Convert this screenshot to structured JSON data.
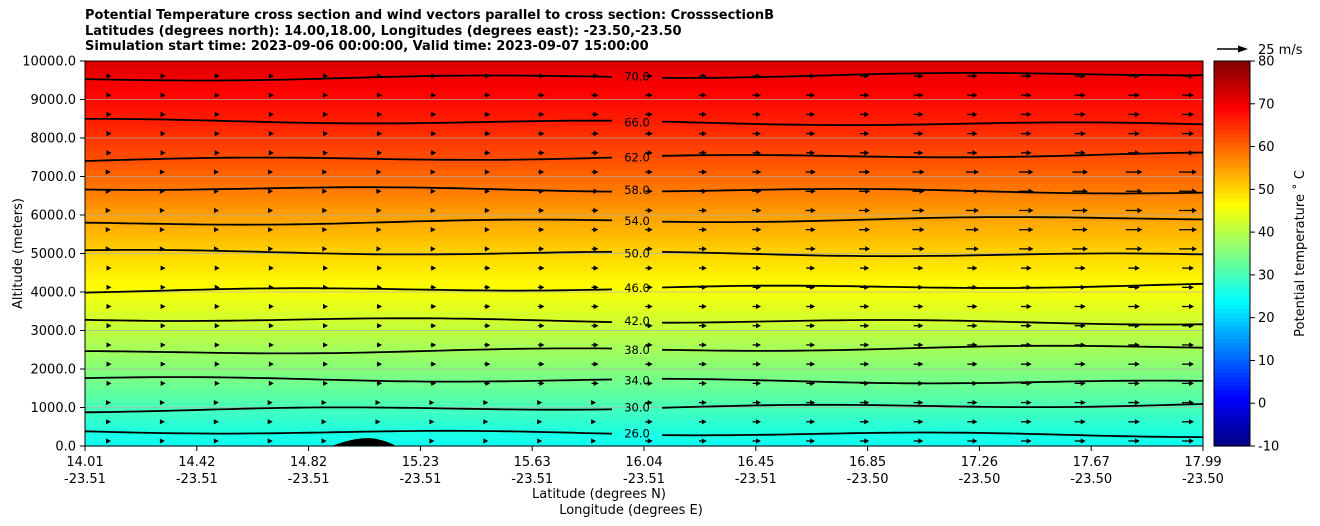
{
  "chart_data": {
    "type": "heatmap",
    "title_lines": [
      "Potential Temperature cross section and wind vectors parallel to cross section: CrosssectionB",
      "Latitudes (degrees north): 14.00,18.00, Longitudes (degrees east): -23.50,-23.50",
      "Simulation start time: 2023-09-06 00:00:00, Valid time: 2023-09-07 15:00:00"
    ],
    "xlabel_lines": [
      "Latitude (degrees N)",
      "Longitude (degrees E)"
    ],
    "ylabel": "Altitude (meters)",
    "x_ticks": [
      {
        "lat": "14.01",
        "lon": "-23.51"
      },
      {
        "lat": "14.42",
        "lon": "-23.51"
      },
      {
        "lat": "14.82",
        "lon": "-23.51"
      },
      {
        "lat": "15.23",
        "lon": "-23.51"
      },
      {
        "lat": "15.63",
        "lon": "-23.51"
      },
      {
        "lat": "16.04",
        "lon": "-23.51"
      },
      {
        "lat": "16.45",
        "lon": "-23.51"
      },
      {
        "lat": "16.85",
        "lon": "-23.50"
      },
      {
        "lat": "17.26",
        "lon": "-23.50"
      },
      {
        "lat": "17.67",
        "lon": "-23.50"
      },
      {
        "lat": "17.99",
        "lon": "-23.50"
      }
    ],
    "y_ticks": [
      "0.0",
      "1000.0",
      "2000.0",
      "3000.0",
      "4000.0",
      "5000.0",
      "6000.0",
      "7000.0",
      "8000.0",
      "9000.0",
      "10000.0"
    ],
    "ylim": [
      0,
      10000
    ],
    "colorbar": {
      "label": "Potential temperature ˚ C",
      "range": [
        -10,
        80
      ],
      "ticks": [
        "-10",
        "0",
        "10",
        "20",
        "30",
        "40",
        "50",
        "60",
        "70",
        "80"
      ],
      "colormap": "jet"
    },
    "wind_reference": "25 m/s",
    "contours": [
      {
        "label": "26.0",
        "altitude": 330
      },
      {
        "label": "30.0",
        "altitude": 1000
      },
      {
        "label": "34.0",
        "altitude": 1700
      },
      {
        "label": "38.0",
        "altitude": 2500
      },
      {
        "label": "42.0",
        "altitude": 3250
      },
      {
        "label": "46.0",
        "altitude": 4100
      },
      {
        "label": "50.0",
        "altitude": 5000
      },
      {
        "label": "54.0",
        "altitude": 5850
      },
      {
        "label": "58.0",
        "altitude": 6650
      },
      {
        "label": "62.0",
        "altitude": 7500
      },
      {
        "label": "66.0",
        "altitude": 8400
      },
      {
        "label": "70.0",
        "altitude": 9600
      }
    ],
    "grid": "horizontal"
  }
}
